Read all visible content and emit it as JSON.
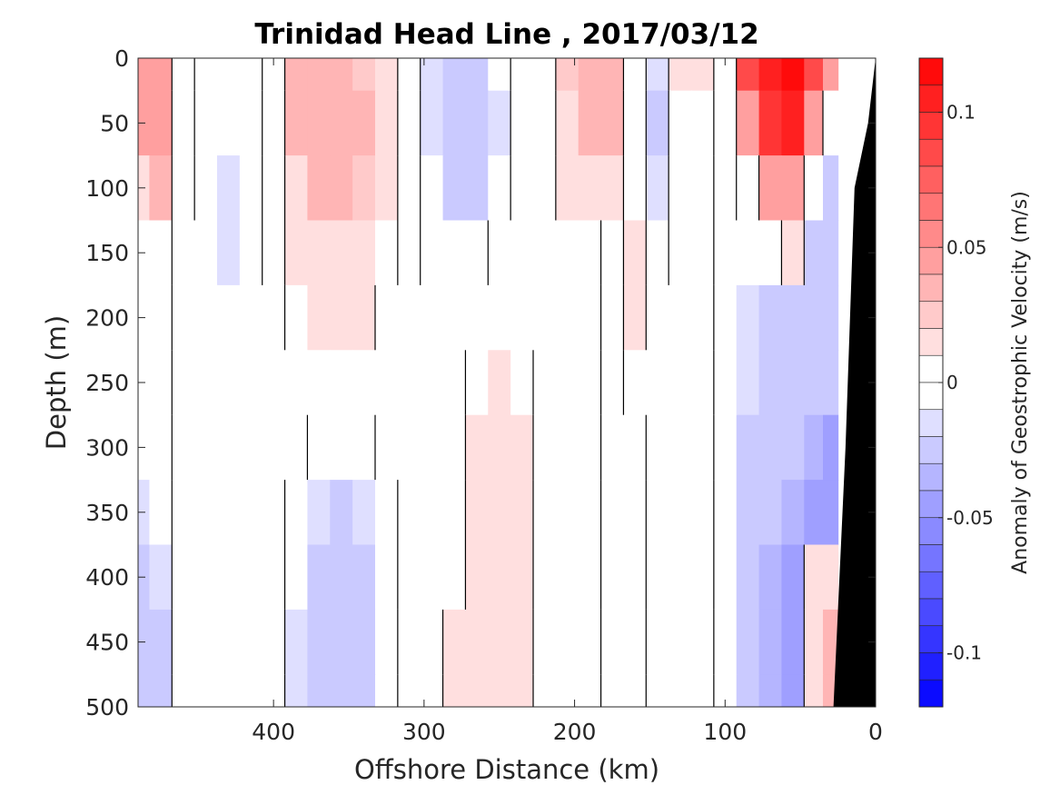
{
  "chart_data": {
    "type": "heatmap",
    "title": "Trinidad Head Line , 2017/03/12",
    "xlabel": "Offshore Distance (km)",
    "ylabel": "Depth (m)",
    "xlim": [
      490,
      0
    ],
    "ylim": [
      0,
      500
    ],
    "x_reversed": true,
    "y_reversed": true,
    "xticks": [
      400,
      300,
      200,
      100,
      0
    ],
    "yticks": [
      0,
      50,
      100,
      150,
      200,
      250,
      300,
      350,
      400,
      450,
      500
    ],
    "colorbar": {
      "label": "Anomaly of Geostrophic Velocity (m/s)",
      "range": [
        -0.12,
        0.12
      ],
      "levels": 24,
      "ticks": [
        0.1,
        0.05,
        0,
        -0.05,
        -0.1
      ],
      "tick_labels": [
        "0.1",
        "0.05",
        "0",
        "-0.05",
        "-0.1"
      ],
      "max_color": "#ff0000",
      "min_color": "#0000ff",
      "zero_color": "#ffffff"
    },
    "colors": {
      "bathymetry": "#000000",
      "contour_zero": "#000000"
    },
    "bathymetry": [
      [
        0,
        0
      ],
      [
        5,
        50
      ],
      [
        14,
        100
      ],
      [
        20,
        300
      ],
      [
        28,
        500
      ]
    ],
    "x": [
      490,
      475,
      460,
      445,
      430,
      415,
      400,
      385,
      370,
      355,
      340,
      325,
      310,
      295,
      280,
      265,
      250,
      235,
      220,
      205,
      190,
      175,
      160,
      145,
      130,
      115,
      100,
      85,
      70,
      55,
      40,
      30
    ],
    "z": [
      0,
      50,
      100,
      150,
      200,
      250,
      300,
      350,
      400,
      450,
      500
    ],
    "values": [
      [
        0.045,
        0.045,
        0.0,
        -0.01,
        -0.01,
        -0.01,
        0.0,
        0.03,
        0.03,
        0.03,
        0.025,
        0.02,
        0.0,
        -0.015,
        -0.02,
        -0.025,
        -0.01,
        0.0,
        0.0,
        0.025,
        0.035,
        0.035,
        0.0,
        -0.015,
        0.01,
        0.015,
        0.0,
        0.08,
        0.11,
        0.12,
        0.08,
        0.04
      ],
      [
        0.04,
        0.05,
        0.0,
        -0.01,
        -0.01,
        -0.01,
        0.0,
        0.035,
        0.035,
        0.035,
        0.03,
        0.02,
        0.0,
        -0.015,
        -0.02,
        -0.025,
        -0.015,
        0.0,
        0.0,
        0.02,
        0.035,
        0.03,
        0.0,
        -0.02,
        0.0,
        0.0,
        -0.01,
        0.05,
        0.09,
        0.1,
        0.05,
        -0.01
      ],
      [
        0.02,
        0.03,
        0.0,
        -0.01,
        -0.015,
        -0.01,
        0.0,
        0.02,
        0.03,
        0.03,
        0.025,
        0.015,
        0.0,
        -0.01,
        -0.02,
        -0.02,
        -0.01,
        0.0,
        0.0,
        0.01,
        0.02,
        0.02,
        0.0,
        -0.015,
        0.0,
        0.0,
        -0.01,
        0.0,
        0.04,
        0.045,
        -0.01,
        -0.02
      ],
      [
        0.0,
        0.0,
        -0.005,
        -0.01,
        -0.015,
        -0.01,
        0.0,
        0.01,
        0.02,
        0.02,
        0.015,
        0.005,
        0.0,
        -0.01,
        -0.01,
        -0.01,
        0.0,
        0.0,
        0.0,
        0.0,
        0.0,
        -0.01,
        0.01,
        -0.01,
        0.0,
        0.0,
        -0.01,
        -0.01,
        -0.01,
        0.01,
        -0.02,
        -0.03
      ],
      [
        -0.01,
        -0.005,
        0.0,
        0.0,
        0.0,
        0.0,
        0.0,
        0.005,
        0.01,
        0.01,
        0.01,
        0.0,
        0.0,
        0.0,
        0.0,
        0.0,
        0.0,
        0.0,
        0.0,
        0.0,
        0.0,
        -0.01,
        0.01,
        0.0,
        0.0,
        0.0,
        -0.01,
        -0.015,
        -0.02,
        -0.02,
        -0.03,
        -0.03
      ],
      [
        -0.01,
        -0.01,
        0.0,
        0.0,
        0.0,
        0.0,
        0.0,
        0.0,
        0.0,
        0.0,
        0.0,
        0.0,
        0.0,
        0.0,
        0.0,
        0.005,
        0.01,
        0.005,
        0.0,
        0.0,
        0.0,
        -0.005,
        0.0,
        0.0,
        0.0,
        0.0,
        -0.01,
        -0.015,
        -0.02,
        -0.025,
        -0.03,
        -0.03
      ],
      [
        -0.01,
        -0.01,
        0.0,
        0.0,
        0.0,
        0.0,
        0.0,
        0.0,
        -0.01,
        -0.01,
        -0.01,
        0.0,
        0.0,
        0.0,
        0.0,
        0.01,
        0.01,
        0.01,
        0.0,
        0.0,
        0.0,
        -0.01,
        -0.01,
        0.0,
        0.0,
        0.0,
        -0.01,
        -0.02,
        -0.03,
        -0.03,
        -0.035,
        -0.04
      ],
      [
        -0.015,
        -0.01,
        0.0,
        0.0,
        0.0,
        0.0,
        0.0,
        -0.01,
        -0.015,
        -0.02,
        -0.015,
        -0.01,
        0.0,
        0.0,
        0.0,
        0.01,
        0.01,
        0.01,
        0.0,
        0.0,
        0.0,
        -0.01,
        -0.01,
        0.0,
        0.0,
        0.0,
        -0.01,
        -0.02,
        -0.03,
        -0.035,
        -0.04,
        -0.04
      ],
      [
        -0.02,
        -0.015,
        0.0,
        0.0,
        0.0,
        0.0,
        0.0,
        -0.01,
        -0.02,
        -0.025,
        -0.02,
        -0.01,
        0.0,
        0.0,
        0.0,
        0.01,
        0.015,
        0.01,
        0.0,
        0.0,
        0.0,
        -0.01,
        -0.01,
        0.0,
        0.0,
        0.0,
        -0.01,
        -0.02,
        -0.035,
        -0.04,
        0.01,
        0.02
      ],
      [
        -0.02,
        -0.02,
        0.0,
        0.0,
        0.0,
        0.0,
        0.0,
        -0.015,
        -0.02,
        -0.03,
        -0.025,
        -0.01,
        0.0,
        0.0,
        0.01,
        0.01,
        0.01,
        0.01,
        0.0,
        0.0,
        0.0,
        -0.01,
        -0.01,
        0.0,
        0.0,
        0.0,
        -0.01,
        -0.02,
        -0.035,
        -0.04,
        0.02,
        0.03
      ],
      [
        -0.02,
        -0.02,
        0.0,
        0.0,
        0.0,
        0.0,
        0.0,
        -0.015,
        -0.02,
        -0.03,
        -0.025,
        -0.01,
        0.0,
        0.0,
        0.01,
        0.01,
        0.01,
        0.01,
        0.0,
        0.0,
        0.0,
        -0.01,
        -0.01,
        0.0,
        0.0,
        0.0,
        -0.01,
        -0.02,
        -0.035,
        -0.04,
        0.02,
        0.03
      ]
    ]
  }
}
